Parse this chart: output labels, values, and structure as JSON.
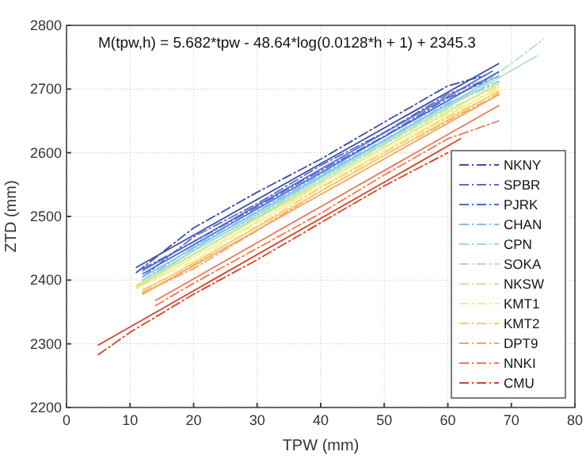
{
  "chart_data": {
    "type": "line",
    "xlabel": "TPW (mm)",
    "ylabel": "ZTD (mm)",
    "annotations": [
      "M(tpw,h) = 5.682*tpw - 48.64*log(0.0128*h + 1) + 2345.3"
    ],
    "xlim": [
      0,
      80
    ],
    "ylim": [
      2200,
      2800
    ],
    "xticks": [
      0,
      10,
      20,
      30,
      40,
      50,
      60,
      70,
      80
    ],
    "yticks": [
      2200,
      2300,
      2400,
      2500,
      2600,
      2700,
      2800
    ],
    "grid": true,
    "legend": "bottom right",
    "series": [
      {
        "name": "NKNY",
        "color": "#3b4cb0",
        "line_style": "dashdot",
        "x": [
          11,
          20,
          30,
          40,
          50,
          60,
          66
        ],
        "values": [
          2412,
          2482,
          2538,
          2590,
          2648,
          2705,
          2722
        ]
      },
      {
        "name": "SPBR",
        "color": "#5a6cc4",
        "line_style": "dashdot",
        "x": [
          12,
          20,
          30,
          40,
          50,
          60,
          67
        ],
        "values": [
          2405,
          2468,
          2520,
          2580,
          2632,
          2692,
          2718
        ]
      },
      {
        "name": "PJRK",
        "color": "#4a6ad4",
        "line_style": "dashdot",
        "x": [
          12,
          20,
          30,
          40,
          50,
          60,
          68
        ],
        "values": [
          2418,
          2460,
          2515,
          2572,
          2626,
          2686,
          2720
        ]
      },
      {
        "name": "CHAN",
        "color": "#7ec4ea",
        "line_style": "dashdot",
        "x": [
          12,
          20,
          30,
          40,
          50,
          60,
          68
        ],
        "values": [
          2400,
          2452,
          2508,
          2566,
          2620,
          2678,
          2712
        ]
      },
      {
        "name": "CPN",
        "color": "#9ad6e2",
        "line_style": "dashdot",
        "x": [
          12,
          20,
          30,
          40,
          50,
          60,
          67
        ],
        "values": [
          2396,
          2446,
          2503,
          2562,
          2618,
          2674,
          2706
        ]
      },
      {
        "name": "SOKA",
        "color": "#b6e0bc",
        "line_style": "dashdot",
        "x": [
          12,
          20,
          30,
          40,
          50,
          60,
          70,
          75
        ],
        "values": [
          2392,
          2448,
          2500,
          2560,
          2616,
          2670,
          2740,
          2778
        ]
      },
      {
        "name": "NKSW",
        "color": "#d6e68e",
        "line_style": "dashdot",
        "x": [
          11,
          20,
          30,
          40,
          50,
          60,
          68
        ],
        "values": [
          2392,
          2440,
          2498,
          2556,
          2612,
          2668,
          2705
        ]
      },
      {
        "name": "KMT1",
        "color": "#f6ee7e",
        "line_style": "dashdot",
        "x": [
          11,
          20,
          30,
          40,
          50,
          60,
          68
        ],
        "values": [
          2388,
          2430,
          2490,
          2552,
          2608,
          2662,
          2700
        ]
      },
      {
        "name": "KMT2",
        "color": "#f8cc6e",
        "line_style": "dashdot",
        "x": [
          12,
          20,
          30,
          40,
          50,
          60,
          68
        ],
        "values": [
          2385,
          2425,
          2485,
          2545,
          2600,
          2656,
          2695
        ]
      },
      {
        "name": "DPT9",
        "color": "#f6a45e",
        "line_style": "dashdot",
        "x": [
          12,
          20,
          30,
          40,
          50,
          60,
          68
        ],
        "values": [
          2380,
          2418,
          2478,
          2540,
          2596,
          2650,
          2692
        ]
      },
      {
        "name": "NNKI",
        "color": "#f07650",
        "line_style": "dashdot",
        "x": [
          14,
          20,
          30,
          40,
          50,
          60,
          68
        ],
        "values": [
          2360,
          2395,
          2450,
          2505,
          2565,
          2622,
          2650
        ]
      },
      {
        "name": "CMU",
        "color": "#d04628",
        "line_style": "dashdot",
        "x": [
          5,
          10,
          20,
          30,
          40,
          50,
          60
        ],
        "values": [
          2283,
          2318,
          2378,
          2432,
          2490,
          2548,
          2600
        ]
      },
      {
        "color": "#3b4cb0",
        "line_style": "solid",
        "x": [
          11,
          68
        ],
        "values": [
          2420,
          2740
        ]
      },
      {
        "color": "#5a6cc4",
        "line_style": "solid",
        "x": [
          12,
          67
        ],
        "values": [
          2415,
          2728
        ]
      },
      {
        "color": "#4a6ad4",
        "line_style": "solid",
        "x": [
          12,
          68
        ],
        "values": [
          2410,
          2727
        ]
      },
      {
        "color": "#7ec4ea",
        "line_style": "solid",
        "x": [
          12,
          68
        ],
        "values": [
          2405,
          2721
        ]
      },
      {
        "color": "#9ad6e2",
        "line_style": "solid",
        "x": [
          12,
          67
        ],
        "values": [
          2400,
          2715
        ]
      },
      {
        "color": "#b6e0bc",
        "line_style": "solid",
        "x": [
          12,
          74
        ],
        "values": [
          2395,
          2752
        ]
      },
      {
        "color": "#d6e68e",
        "line_style": "solid",
        "x": [
          11,
          68
        ],
        "values": [
          2390,
          2709
        ]
      },
      {
        "color": "#f6ee7e",
        "line_style": "solid",
        "x": [
          11,
          68
        ],
        "values": [
          2386,
          2703
        ]
      },
      {
        "color": "#f8cc6e",
        "line_style": "solid",
        "x": [
          12,
          68
        ],
        "values": [
          2382,
          2697
        ]
      },
      {
        "color": "#f6a45e",
        "line_style": "solid",
        "x": [
          12,
          68
        ],
        "values": [
          2378,
          2691
        ]
      },
      {
        "color": "#f07650",
        "line_style": "solid",
        "x": [
          14,
          68
        ],
        "values": [
          2368,
          2674
        ]
      },
      {
        "color": "#d04628",
        "line_style": "solid",
        "x": [
          5,
          62
        ],
        "values": [
          2298,
          2622
        ]
      }
    ]
  }
}
